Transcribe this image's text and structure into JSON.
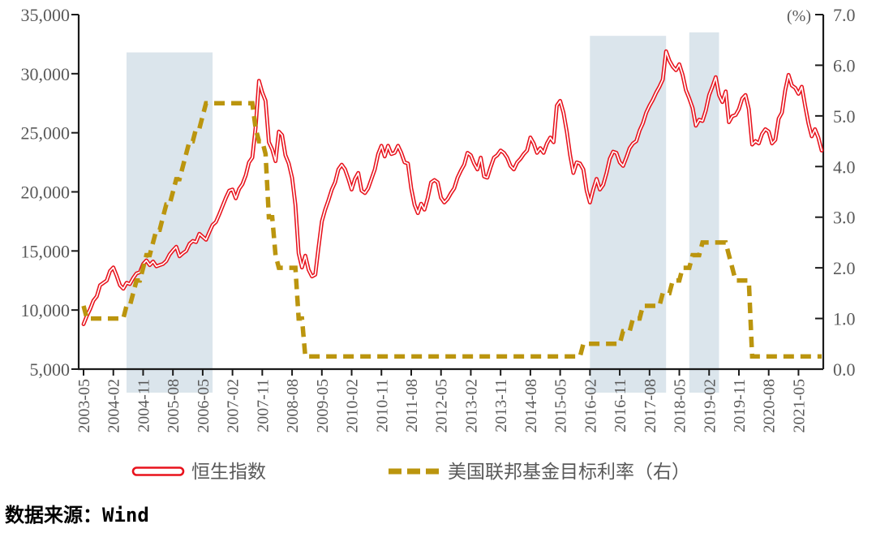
{
  "source_note": "数据来源：Wind",
  "legend": {
    "hsi": {
      "label": "恒生指数",
      "marker": "hollow-red-capsule"
    },
    "fed": {
      "label": "美国联邦基金目标利率（右）",
      "marker": "gold-dashes"
    }
  },
  "colors": {
    "hsi_line": "#e8121c",
    "hsi_core": "#ffffff",
    "fed_line": "#bb950e",
    "region": "#dbe5ec",
    "axis": "#1a1a1a",
    "tick_text": "#595959"
  },
  "chart_data": {
    "type": "line",
    "x_start_month": "2003-05",
    "x_end_month": "2021-12",
    "x_tick_labels": [
      "2003-05",
      "2004-02",
      "2004-11",
      "2005-08",
      "2006-05",
      "2007-02",
      "2007-11",
      "2008-08",
      "2009-05",
      "2010-02",
      "2010-11",
      "2011-08",
      "2012-05",
      "2013-02",
      "2013-11",
      "2014-08",
      "2015-05",
      "2016-02",
      "2016-11",
      "2017-08",
      "2018-05",
      "2019-02",
      "2019-11",
      "2020-08",
      "2021-05"
    ],
    "x_tick_step_months": 9,
    "y_left": {
      "min": 5000,
      "max": 35000,
      "step": 5000
    },
    "y_right": {
      "min": 0,
      "max": 7,
      "step": 1,
      "unit": "(%)"
    },
    "grid": false,
    "legend_position": "bottom",
    "series": [
      {
        "name": "恒生指数",
        "axis": "left",
        "style": "double-hollow-line",
        "color": "#e8121c",
        "values": [
          8800,
          9500,
          10100,
          10800,
          11150,
          12100,
          12300,
          12500,
          13300,
          13600,
          12900,
          12100,
          11800,
          12300,
          12200,
          12700,
          13100,
          13200,
          13900,
          14200,
          13800,
          14100,
          13700,
          13800,
          13900,
          14150,
          14700,
          15050,
          15350,
          14550,
          14800,
          15000,
          15600,
          15850,
          15750,
          16450,
          16200,
          15950,
          16600,
          17200,
          17450,
          18100,
          18800,
          19500,
          20100,
          20200,
          19450,
          20250,
          20650,
          21400,
          22500,
          22900,
          25500,
          29400,
          28400,
          27700,
          24200,
          23600,
          22600,
          25100,
          24800,
          23100,
          22400,
          21200,
          18900,
          14800,
          13600,
          14600,
          13400,
          12850,
          13000,
          15300,
          17500,
          18500,
          19300,
          20200,
          20800,
          21900,
          22300,
          21900,
          21100,
          20200,
          21100,
          21600,
          20100,
          19900,
          20300,
          21100,
          21900,
          23200,
          23900,
          23000,
          23900,
          23200,
          23300,
          23900,
          23300,
          22500,
          22400,
          20300,
          18900,
          18200,
          19000,
          18500,
          19500,
          20800,
          21000,
          20800,
          19500,
          19100,
          19400,
          19900,
          20300,
          21200,
          21800,
          22300,
          23300,
          23100,
          22400,
          21900,
          22900,
          21300,
          21200,
          22100,
          22900,
          23100,
          23500,
          23300,
          22900,
          22200,
          21900,
          22500,
          22800,
          23200,
          23500,
          24600,
          24100,
          23300,
          23700,
          23300,
          24100,
          24600,
          24200,
          27300,
          27700,
          26700,
          25100,
          23100,
          21600,
          22500,
          22400,
          21900,
          20100,
          19100,
          20200,
          21100,
          20200,
          20600,
          21600,
          22800,
          23400,
          23300,
          22500,
          22200,
          22900,
          23700,
          24100,
          24300,
          25200,
          25800,
          26700,
          27300,
          27800,
          28400,
          28900,
          29500,
          31900,
          31100,
          30600,
          30300,
          30800,
          29900,
          28600,
          27900,
          27100,
          25600,
          26100,
          26000,
          26900,
          28200,
          28900,
          29700,
          28200,
          27600,
          28500,
          25900,
          26400,
          26500,
          27000,
          27900,
          28200,
          27000,
          24000,
          24300,
          24100,
          24900,
          25300,
          25100,
          24100,
          24400,
          26200,
          26700,
          28600,
          29900,
          29000,
          28800,
          28300,
          28900,
          27300,
          25800,
          24700,
          25300,
          24600,
          23500
        ]
      },
      {
        "name": "美国联邦基金目标利率（右）",
        "axis": "right",
        "style": "dashed",
        "color": "#bb950e",
        "values": [
          1.25,
          1,
          1,
          1,
          1,
          1,
          1,
          1,
          1,
          1,
          1,
          1,
          1,
          1.25,
          1.25,
          1.5,
          1.75,
          1.75,
          2,
          2.25,
          2.25,
          2.5,
          2.75,
          2.75,
          3,
          3.25,
          3.25,
          3.5,
          3.75,
          3.75,
          4,
          4.25,
          4.5,
          4.5,
          4.75,
          4.75,
          5,
          5.25,
          5.25,
          5.25,
          5.25,
          5.25,
          5.25,
          5.25,
          5.25,
          5.25,
          5.25,
          5.25,
          5.25,
          5.25,
          5.25,
          5.25,
          4.75,
          4.5,
          4.5,
          4.25,
          3,
          3,
          2.25,
          2,
          2,
          2,
          2,
          2,
          2,
          1,
          1,
          0.25,
          0.25,
          0.25,
          0.25,
          0.25,
          0.25,
          0.25,
          0.25,
          0.25,
          0.25,
          0.25,
          0.25,
          0.25,
          0.25,
          0.25,
          0.25,
          0.25,
          0.25,
          0.25,
          0.25,
          0.25,
          0.25,
          0.25,
          0.25,
          0.25,
          0.25,
          0.25,
          0.25,
          0.25,
          0.25,
          0.25,
          0.25,
          0.25,
          0.25,
          0.25,
          0.25,
          0.25,
          0.25,
          0.25,
          0.25,
          0.25,
          0.25,
          0.25,
          0.25,
          0.25,
          0.25,
          0.25,
          0.25,
          0.25,
          0.25,
          0.25,
          0.25,
          0.25,
          0.25,
          0.25,
          0.25,
          0.25,
          0.25,
          0.25,
          0.25,
          0.25,
          0.25,
          0.25,
          0.25,
          0.25,
          0.25,
          0.25,
          0.25,
          0.25,
          0.25,
          0.25,
          0.25,
          0.25,
          0.25,
          0.25,
          0.25,
          0.25,
          0.25,
          0.25,
          0.25,
          0.25,
          0.25,
          0.25,
          0.25,
          0.5,
          0.5,
          0.5,
          0.5,
          0.5,
          0.5,
          0.5,
          0.5,
          0.5,
          0.5,
          0.5,
          0.5,
          0.75,
          0.75,
          0.75,
          1,
          1,
          1,
          1.25,
          1.25,
          1.25,
          1.25,
          1.25,
          1.25,
          1.5,
          1.5,
          1.5,
          1.75,
          1.75,
          1.75,
          2,
          2,
          2,
          2.25,
          2.25,
          2.25,
          2.5,
          2.5,
          2.5,
          2.5,
          2.5,
          2.5,
          2.5,
          2.5,
          2.25,
          2,
          1.75,
          1.75,
          1.75,
          1.75,
          1.75,
          0.25,
          0.25,
          0.25,
          0.25,
          0.25,
          0.25,
          0.25,
          0.25,
          0.25,
          0.25,
          0.25,
          0.25,
          0.25,
          0.25,
          0.25,
          0.25,
          0.25,
          0.25,
          0.25,
          0.25,
          0.25,
          0.25
        ]
      }
    ],
    "shaded_regions": [
      {
        "start": "2004-06",
        "end": "2006-08",
        "top_left_axis": 31800
      },
      {
        "start": "2016-02",
        "end": "2018-01",
        "top_left_axis": 33200
      },
      {
        "start": "2018-08",
        "end": "2019-05",
        "top_left_axis": 33500
      }
    ],
    "region_color": "#dbe5ec"
  }
}
